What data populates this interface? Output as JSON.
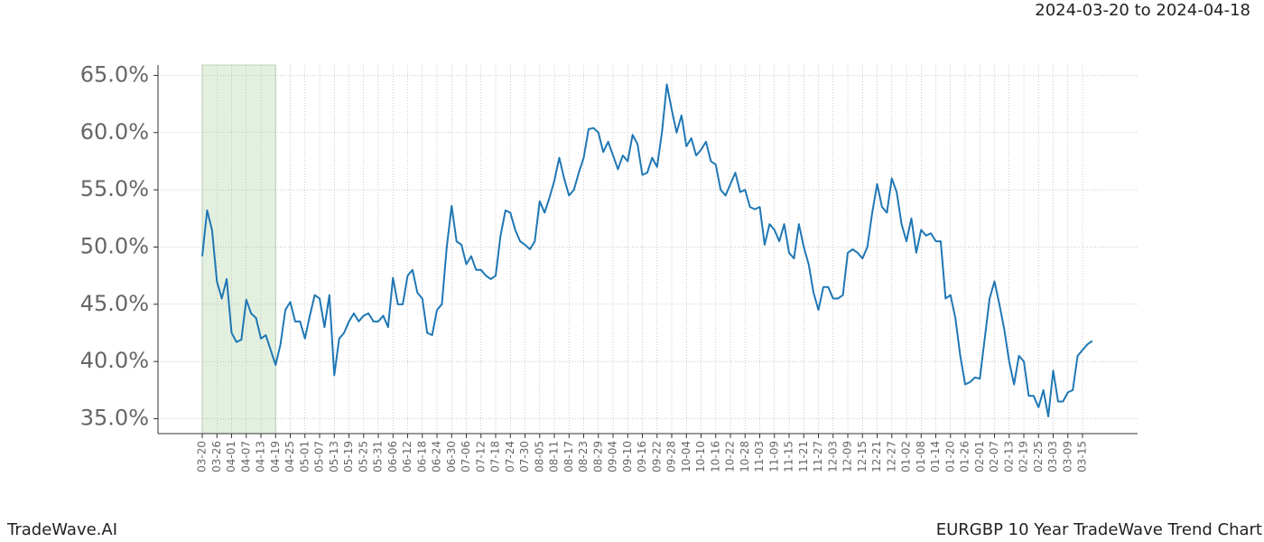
{
  "header": {
    "date_range": "2024-03-20 to 2024-04-18"
  },
  "footer": {
    "brand": "TradeWave.AI",
    "chart_name": "EURGBP 10 Year TradeWave Trend Chart"
  },
  "chart_data": {
    "type": "line",
    "categories": [
      "03-20",
      null,
      null,
      "03-26",
      null,
      null,
      "04-01",
      null,
      null,
      "04-07",
      null,
      null,
      "04-13",
      null,
      null,
      "04-19",
      null,
      null,
      "04-25",
      null,
      null,
      "05-01",
      null,
      null,
      "05-07",
      null,
      null,
      "05-13",
      null,
      null,
      "05-19",
      null,
      null,
      "05-25",
      null,
      null,
      "05-31",
      null,
      null,
      "06-06",
      null,
      null,
      "06-12",
      null,
      null,
      "06-18",
      null,
      null,
      "06-24",
      null,
      null,
      "06-30",
      null,
      null,
      "07-06",
      null,
      null,
      "07-12",
      null,
      null,
      "07-18",
      null,
      null,
      "07-24",
      null,
      null,
      "07-30",
      null,
      null,
      "08-05",
      null,
      null,
      "08-11",
      null,
      null,
      "08-17",
      null,
      null,
      "08-23",
      null,
      null,
      "08-29",
      null,
      null,
      "09-04",
      null,
      null,
      "09-10",
      null,
      null,
      "09-16",
      null,
      null,
      "09-22",
      null,
      null,
      "09-28",
      null,
      null,
      "10-04",
      null,
      null,
      "10-10",
      null,
      null,
      "10-16",
      null,
      null,
      "10-22",
      null,
      null,
      "10-28",
      null,
      null,
      "11-03",
      null,
      null,
      "11-09",
      null,
      null,
      "11-15",
      null,
      null,
      "11-21",
      null,
      null,
      "11-27",
      null,
      null,
      "12-03",
      null,
      null,
      "12-09",
      null,
      null,
      "12-15",
      null,
      null,
      "12-21",
      null,
      null,
      "12-27",
      null,
      null,
      "01-02",
      null,
      null,
      "01-08",
      null,
      null,
      "01-14",
      null,
      null,
      "01-20",
      null,
      null,
      "01-26",
      null,
      null,
      "02-01",
      null,
      null,
      "02-07",
      null,
      null,
      "02-13",
      null,
      null,
      "02-19",
      null,
      null,
      "02-25",
      null,
      null,
      "03-03",
      null,
      null,
      "03-09",
      null,
      null,
      "03-15",
      null,
      null
    ],
    "series": [
      {
        "name": "EURGBP",
        "color": "#1f77b4",
        "values": [
          49.2,
          53.2,
          51.5,
          47,
          45.5,
          47.2,
          42.5,
          41.7,
          41.9,
          45.4,
          44.2,
          43.8,
          42,
          42.3,
          41,
          39.7,
          41.5,
          44.5,
          45.2,
          43.5,
          43.5,
          42,
          44,
          45.8,
          45.5,
          43,
          45.8,
          38.8,
          42,
          42.5,
          43.5,
          44.2,
          43.5,
          44,
          44.2,
          43.5,
          43.5,
          44,
          43,
          47.3,
          45,
          45,
          47.5,
          48,
          46,
          45.5,
          42.5,
          42.3,
          44.5,
          45,
          50,
          53.6,
          50.5,
          50.2,
          48.5,
          49.2,
          48,
          48,
          47.5,
          47.2,
          47.5,
          51,
          53.2,
          53,
          51.5,
          50.5,
          50.2,
          49.8,
          50.5,
          54,
          53,
          54.3,
          55.8,
          57.8,
          56,
          54.5,
          55,
          56.5,
          57.8,
          60.3,
          60.4,
          60,
          58.3,
          59.2,
          58,
          56.8,
          58,
          57.5,
          59.8,
          59,
          56.3,
          56.5,
          57.8,
          57,
          60,
          64.2,
          62,
          60,
          61.5,
          58.8,
          59.5,
          58,
          58.5,
          59.2,
          57.5,
          57.2,
          55,
          54.5,
          55.5,
          56.5,
          54.8,
          55,
          53.5,
          53.3,
          53.5,
          50.2,
          52,
          51.5,
          50.5,
          52,
          49.5,
          49,
          52,
          50,
          48.5,
          46,
          44.5,
          46.5,
          46.5,
          45.5,
          45.5,
          45.8,
          49.5,
          49.8,
          49.5,
          49,
          50,
          53,
          55.5,
          53.5,
          53,
          56,
          54.8,
          52,
          50.5,
          52.5,
          49.5,
          51.5,
          51,
          51.2,
          50.5,
          50.5,
          45.5,
          45.8,
          43.8,
          40.5,
          38,
          38.2,
          38.6,
          38.5,
          42,
          45.5,
          47,
          45,
          42.8,
          40,
          38,
          40.5,
          40,
          37,
          37,
          36,
          37.5,
          35.2,
          39.2,
          36.5,
          36.5,
          37.3,
          37.5,
          40.5,
          41,
          41.5,
          41.8
        ]
      }
    ],
    "ylim": [
      33.7,
      65.9
    ],
    "yticks": [
      {
        "value": 35,
        "label": "35.0%"
      },
      {
        "value": 40,
        "label": "40.0%"
      },
      {
        "value": 45,
        "label": "45.0%"
      },
      {
        "value": 50,
        "label": "50.0%"
      },
      {
        "value": 55,
        "label": "55.0%"
      },
      {
        "value": 60,
        "label": "60.0%"
      },
      {
        "value": 65,
        "label": "65.0%"
      }
    ],
    "grid": true
  }
}
